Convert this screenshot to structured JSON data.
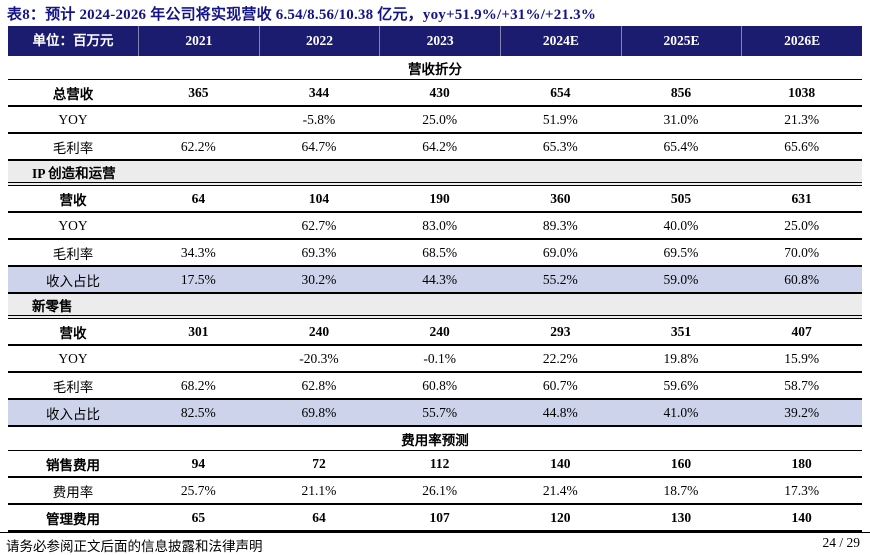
{
  "title": "表8：预计 2024-2026 年公司将实现营收 6.54/8.56/10.38 亿元，yoy+51.9%/+31%/+21.3%",
  "table": {
    "header": [
      "单位：百万元",
      "2021",
      "2022",
      "2023",
      "2024E",
      "2025E",
      "2026E"
    ],
    "rows": [
      {
        "type": "section_center",
        "label": "营收折分"
      },
      {
        "type": "data",
        "bold": true,
        "highlight": false,
        "label": "总营收",
        "values": [
          "365",
          "344",
          "430",
          "654",
          "856",
          "1038"
        ]
      },
      {
        "type": "data",
        "bold": false,
        "highlight": false,
        "label": "YOY",
        "values": [
          "",
          "-5.8%",
          "25.0%",
          "51.9%",
          "31.0%",
          "21.3%"
        ]
      },
      {
        "type": "data",
        "bold": false,
        "highlight": false,
        "label": "毛利率",
        "values": [
          "62.2%",
          "64.7%",
          "64.2%",
          "65.3%",
          "65.4%",
          "65.6%"
        ]
      },
      {
        "type": "section_left",
        "label": "IP 创造和运营"
      },
      {
        "type": "data",
        "bold": true,
        "highlight": false,
        "label": "营收",
        "values": [
          "64",
          "104",
          "190",
          "360",
          "505",
          "631"
        ]
      },
      {
        "type": "data",
        "bold": false,
        "highlight": false,
        "label": "YOY",
        "values": [
          "",
          "62.7%",
          "83.0%",
          "89.3%",
          "40.0%",
          "25.0%"
        ]
      },
      {
        "type": "data",
        "bold": false,
        "highlight": false,
        "label": "毛利率",
        "values": [
          "34.3%",
          "69.3%",
          "68.5%",
          "69.0%",
          "69.5%",
          "70.0%"
        ]
      },
      {
        "type": "data",
        "bold": false,
        "highlight": true,
        "label": "收入占比",
        "values": [
          "17.5%",
          "30.2%",
          "44.3%",
          "55.2%",
          "59.0%",
          "60.8%"
        ]
      },
      {
        "type": "section_left",
        "label": "新零售"
      },
      {
        "type": "data",
        "bold": true,
        "highlight": false,
        "label": "营收",
        "values": [
          "301",
          "240",
          "240",
          "293",
          "351",
          "407"
        ]
      },
      {
        "type": "data",
        "bold": false,
        "highlight": false,
        "label": "YOY",
        "values": [
          "",
          "-20.3%",
          "-0.1%",
          "22.2%",
          "19.8%",
          "15.9%"
        ]
      },
      {
        "type": "data",
        "bold": false,
        "highlight": false,
        "label": "毛利率",
        "values": [
          "68.2%",
          "62.8%",
          "60.8%",
          "60.7%",
          "59.6%",
          "58.7%"
        ]
      },
      {
        "type": "data",
        "bold": false,
        "highlight": true,
        "label": "收入占比",
        "values": [
          "82.5%",
          "69.8%",
          "55.7%",
          "44.8%",
          "41.0%",
          "39.2%"
        ]
      },
      {
        "type": "section_center",
        "label": "费用率预测"
      },
      {
        "type": "data",
        "bold": true,
        "highlight": false,
        "label": "销售费用",
        "values": [
          "94",
          "72",
          "112",
          "140",
          "160",
          "180"
        ]
      },
      {
        "type": "data",
        "bold": false,
        "highlight": false,
        "label": "费用率",
        "values": [
          "25.7%",
          "21.1%",
          "26.1%",
          "21.4%",
          "18.7%",
          "17.3%"
        ]
      },
      {
        "type": "data",
        "bold": true,
        "highlight": false,
        "label": "管理费用",
        "values": [
          "65",
          "64",
          "107",
          "120",
          "130",
          "140"
        ]
      }
    ]
  },
  "footer": {
    "disclaimer": "请务必参阅正文后面的信息披露和法律声明",
    "page": "24 / 29"
  },
  "colors": {
    "header_bg": "#1b1b70",
    "header_text": "#ffffff",
    "title_text": "#14148a",
    "section_bg": "#ececec",
    "highlight_bg": "#ccd3ea",
    "border": "#000000"
  }
}
